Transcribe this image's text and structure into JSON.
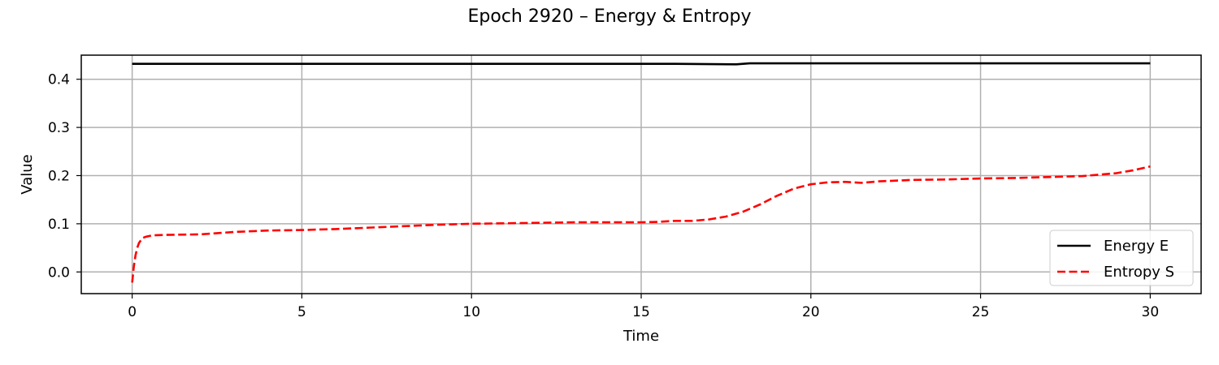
{
  "chart_data": {
    "type": "line",
    "title": "Epoch 2920 – Energy & Entropy",
    "xlabel": "Time",
    "ylabel": "Value",
    "xlim": [
      -1.5,
      31.5
    ],
    "ylim": [
      -0.045,
      0.45
    ],
    "xticks": [
      0,
      5,
      10,
      15,
      20,
      25,
      30
    ],
    "xtick_labels": [
      "0",
      "5",
      "10",
      "15",
      "20",
      "25",
      "30"
    ],
    "yticks": [
      0.0,
      0.1,
      0.2,
      0.3,
      0.4
    ],
    "ytick_labels": [
      "0.0",
      "0.1",
      "0.2",
      "0.3",
      "0.4"
    ],
    "grid": true,
    "legend_position": "lower-right",
    "series": [
      {
        "name": "Energy E",
        "color": "#000000",
        "style": "solid",
        "x": [
          0,
          2,
          4,
          6,
          8,
          10,
          12,
          14,
          16,
          17.8,
          18.2,
          20,
          22,
          24,
          26,
          28,
          30
        ],
        "y": [
          0.432,
          0.432,
          0.432,
          0.432,
          0.432,
          0.432,
          0.432,
          0.432,
          0.432,
          0.431,
          0.433,
          0.433,
          0.433,
          0.433,
          0.433,
          0.433,
          0.433
        ]
      },
      {
        "name": "Entropy S",
        "color": "#ff0000",
        "style": "dashed",
        "x": [
          0,
          0.05,
          0.1,
          0.15,
          0.2,
          0.3,
          0.4,
          0.6,
          1,
          2,
          3,
          4,
          5,
          6,
          7,
          8,
          9,
          10,
          11,
          12,
          13,
          14,
          15,
          15.5,
          16,
          16.5,
          17,
          17.5,
          18,
          18.5,
          19,
          19.5,
          20,
          20.5,
          21,
          21.5,
          22,
          23,
          24,
          25,
          26,
          27,
          28,
          29,
          29.5,
          30
        ],
        "y": [
          -0.022,
          0.012,
          0.035,
          0.05,
          0.06,
          0.07,
          0.073,
          0.076,
          0.077,
          0.078,
          0.083,
          0.086,
          0.087,
          0.089,
          0.092,
          0.095,
          0.098,
          0.1,
          0.101,
          0.102,
          0.103,
          0.103,
          0.103,
          0.104,
          0.106,
          0.106,
          0.109,
          0.115,
          0.125,
          0.14,
          0.158,
          0.173,
          0.182,
          0.186,
          0.187,
          0.185,
          0.188,
          0.191,
          0.192,
          0.194,
          0.195,
          0.197,
          0.199,
          0.205,
          0.211,
          0.219
        ]
      }
    ]
  }
}
